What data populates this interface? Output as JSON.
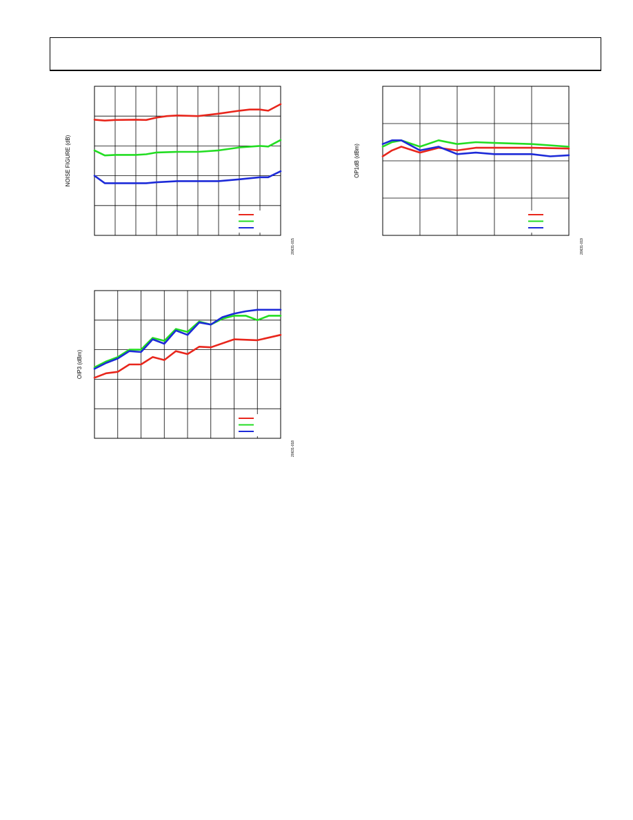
{
  "page": {
    "header_text": ""
  },
  "chart_data": [
    {
      "type": "line",
      "id": "noise-figure",
      "title": "",
      "xlabel": "",
      "ylabel": "NOISE FIGURE (dB)",
      "figure_id": "20631-015",
      "grid": true,
      "legend_placement": "bottom-right",
      "xlim": [
        0,
        9
      ],
      "ylim": [
        0,
        5
      ],
      "x_divisions": 9,
      "y_divisions": 5,
      "series": [
        {
          "color": "#e8261c",
          "points": [
            [
              0,
              3.88
            ],
            [
              0.5,
              3.85
            ],
            [
              1,
              3.87
            ],
            [
              2,
              3.88
            ],
            [
              2.5,
              3.87
            ],
            [
              3,
              3.95
            ],
            [
              3.5,
              4.0
            ],
            [
              4,
              4.02
            ],
            [
              5,
              4.0
            ],
            [
              6,
              4.08
            ],
            [
              7,
              4.18
            ],
            [
              7.5,
              4.22
            ],
            [
              8,
              4.22
            ],
            [
              8.4,
              4.18
            ],
            [
              9,
              4.4
            ]
          ]
        },
        {
          "color": "#22dd22",
          "points": [
            [
              0,
              2.85
            ],
            [
              0.5,
              2.68
            ],
            [
              1,
              2.7
            ],
            [
              2,
              2.7
            ],
            [
              2.5,
              2.72
            ],
            [
              3,
              2.78
            ],
            [
              4,
              2.8
            ],
            [
              5,
              2.8
            ],
            [
              6,
              2.85
            ],
            [
              7,
              2.95
            ],
            [
              8,
              3.0
            ],
            [
              8.4,
              2.98
            ],
            [
              9,
              3.2
            ]
          ]
        },
        {
          "color": "#1c2ad8",
          "points": [
            [
              0,
              2.0
            ],
            [
              0.5,
              1.75
            ],
            [
              1,
              1.75
            ],
            [
              2,
              1.75
            ],
            [
              2.5,
              1.75
            ],
            [
              3,
              1.78
            ],
            [
              4,
              1.82
            ],
            [
              5,
              1.82
            ],
            [
              6,
              1.82
            ],
            [
              7,
              1.88
            ],
            [
              8,
              1.95
            ],
            [
              8.4,
              1.95
            ],
            [
              9,
              2.15
            ]
          ]
        }
      ]
    },
    {
      "type": "line",
      "id": "op1db",
      "title": "",
      "xlabel": "",
      "ylabel": "OP1dB (dBm)",
      "figure_id": "20631-019",
      "grid": true,
      "legend_placement": "bottom-right",
      "xlim": [
        0,
        5
      ],
      "ylim": [
        0,
        4
      ],
      "x_divisions": 5,
      "y_divisions": 4,
      "series": [
        {
          "color": "#e8261c",
          "points": [
            [
              0,
              2.12
            ],
            [
              0.25,
              2.28
            ],
            [
              0.5,
              2.38
            ],
            [
              1,
              2.22
            ],
            [
              1.5,
              2.35
            ],
            [
              2,
              2.28
            ],
            [
              2.5,
              2.35
            ],
            [
              3,
              2.35
            ],
            [
              4,
              2.35
            ],
            [
              5,
              2.33
            ]
          ]
        },
        {
          "color": "#22dd22",
          "points": [
            [
              0,
              2.38
            ],
            [
              0.25,
              2.5
            ],
            [
              0.5,
              2.55
            ],
            [
              1,
              2.38
            ],
            [
              1.5,
              2.55
            ],
            [
              2,
              2.45
            ],
            [
              2.5,
              2.5
            ],
            [
              3,
              2.48
            ],
            [
              4,
              2.45
            ],
            [
              5,
              2.38
            ]
          ]
        },
        {
          "color": "#1c2ad8",
          "points": [
            [
              0,
              2.45
            ],
            [
              0.25,
              2.55
            ],
            [
              0.5,
              2.55
            ],
            [
              1,
              2.28
            ],
            [
              1.5,
              2.38
            ],
            [
              2,
              2.18
            ],
            [
              2.5,
              2.22
            ],
            [
              3,
              2.18
            ],
            [
              4,
              2.18
            ],
            [
              4.5,
              2.12
            ],
            [
              5,
              2.15
            ]
          ]
        }
      ]
    },
    {
      "type": "line",
      "id": "oip3",
      "title": "",
      "xlabel": "",
      "ylabel": "OIP3 (dBm)",
      "figure_id": "20631-018",
      "grid": true,
      "legend_placement": "bottom-right",
      "xlim": [
        0,
        8
      ],
      "ylim": [
        0,
        5
      ],
      "x_divisions": 8,
      "y_divisions": 5,
      "series": [
        {
          "color": "#e8261c",
          "points": [
            [
              0,
              2.05
            ],
            [
              0.5,
              2.2
            ],
            [
              1,
              2.25
            ],
            [
              1.5,
              2.5
            ],
            [
              2,
              2.5
            ],
            [
              2.5,
              2.75
            ],
            [
              3,
              2.65
            ],
            [
              3.5,
              2.95
            ],
            [
              4,
              2.85
            ],
            [
              4.5,
              3.1
            ],
            [
              5,
              3.08
            ],
            [
              6,
              3.35
            ],
            [
              7,
              3.32
            ],
            [
              8,
              3.5
            ]
          ]
        },
        {
          "color": "#22dd22",
          "points": [
            [
              0,
              2.4
            ],
            [
              0.5,
              2.6
            ],
            [
              1,
              2.75
            ],
            [
              1.5,
              3.0
            ],
            [
              2,
              3.0
            ],
            [
              2.5,
              3.4
            ],
            [
              3,
              3.3
            ],
            [
              3.5,
              3.7
            ],
            [
              4,
              3.6
            ],
            [
              4.5,
              3.95
            ],
            [
              5,
              3.85
            ],
            [
              5.5,
              4.05
            ],
            [
              6,
              4.15
            ],
            [
              6.5,
              4.15
            ],
            [
              7,
              4.0
            ],
            [
              7.5,
              4.15
            ],
            [
              8,
              4.15
            ]
          ]
        },
        {
          "color": "#1c2ad8",
          "points": [
            [
              0,
              2.35
            ],
            [
              0.5,
              2.55
            ],
            [
              1,
              2.7
            ],
            [
              1.5,
              2.95
            ],
            [
              2,
              2.92
            ],
            [
              2.5,
              3.35
            ],
            [
              3,
              3.2
            ],
            [
              3.5,
              3.65
            ],
            [
              4,
              3.5
            ],
            [
              4.5,
              3.92
            ],
            [
              5,
              3.85
            ],
            [
              5.5,
              4.1
            ],
            [
              6,
              4.22
            ],
            [
              6.5,
              4.3
            ],
            [
              7,
              4.35
            ],
            [
              8,
              4.35
            ]
          ]
        }
      ]
    }
  ]
}
